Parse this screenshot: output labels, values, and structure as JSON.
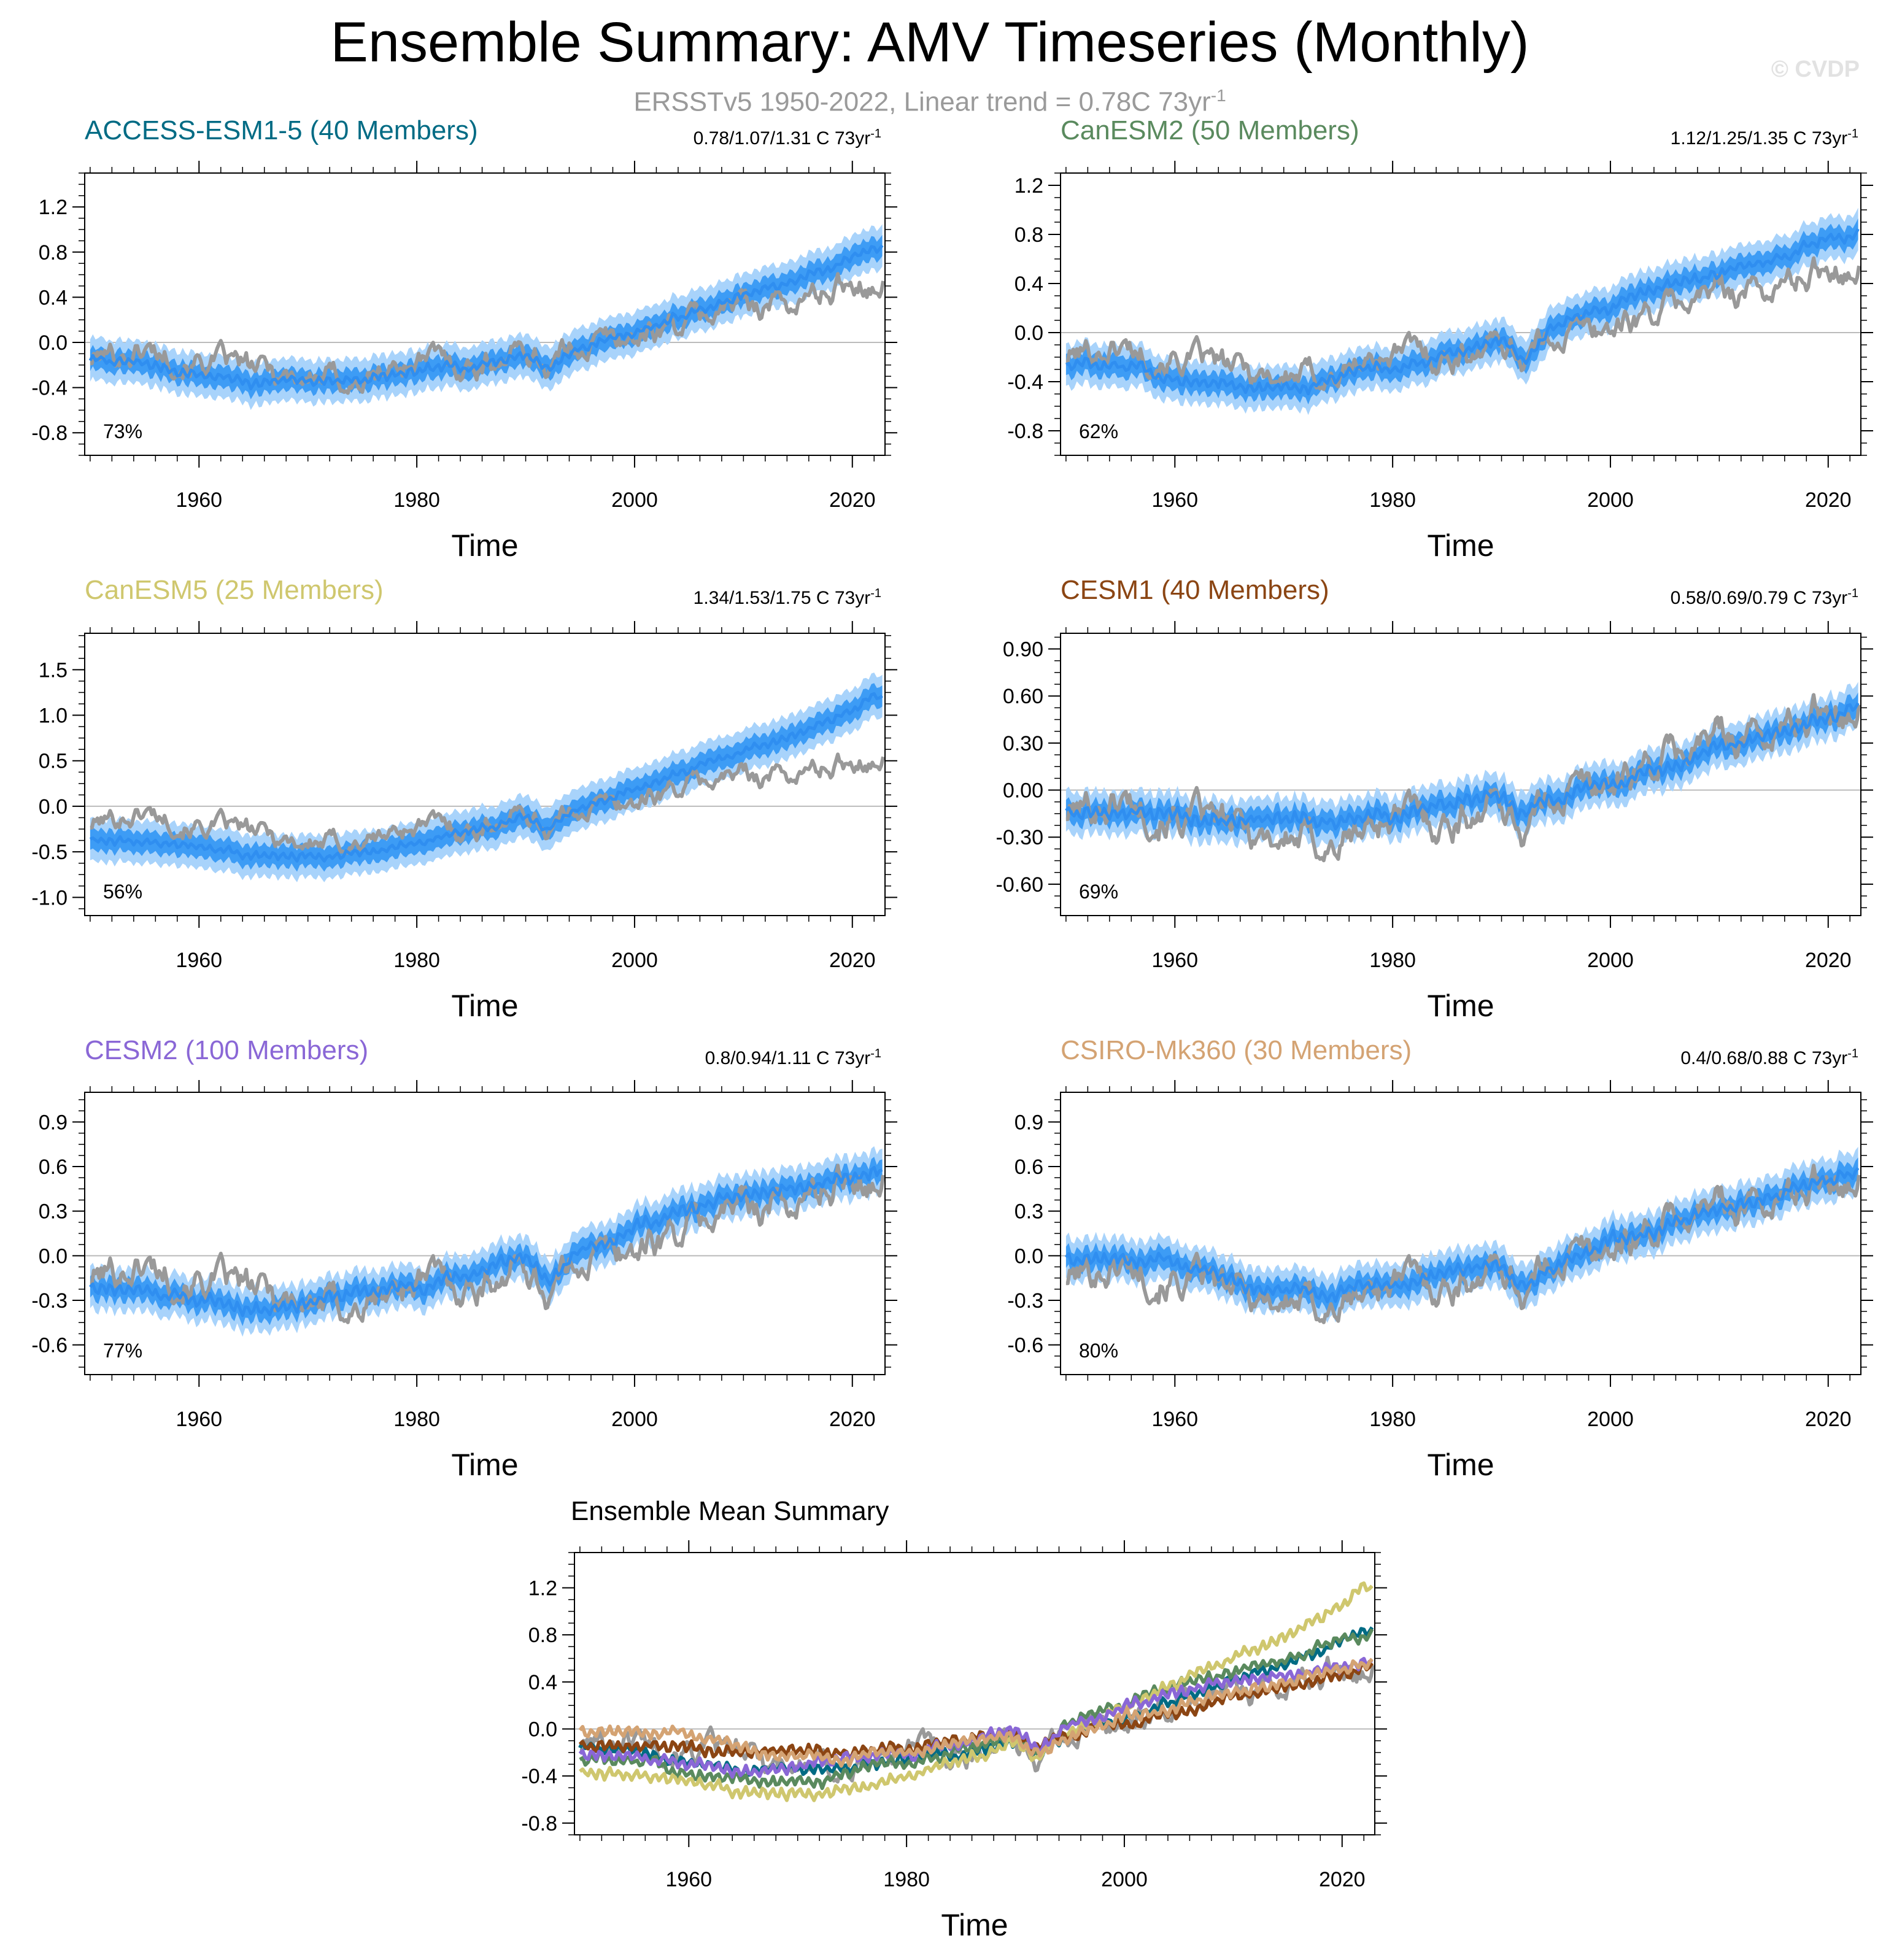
{
  "title": "Ensemble Summary: AMV Timeseries (Monthly)",
  "subtitle_main": "ERSSTv5 1950-2022, Linear trend = 0.78C 73yr",
  "subtitle_sup": "-1",
  "watermark": "© CVDP",
  "colors": {
    "observations": "#999999",
    "ensemble_mean": "#2f8ef0",
    "spread_inner": "#3d9cf5",
    "spread_outer": "#a8d3fb",
    "zero_line": "#bbbbbb"
  },
  "chart_data": [
    {
      "type": "line",
      "id": "access",
      "title": "ACCESS-ESM1-5 (40 Members)",
      "title_color": "#006b84",
      "trend_range": "0.78/1.07/1.31 C 73yr",
      "trend_sup": "-1",
      "percent_label": "73%",
      "xlabel": "Time",
      "xlim": [
        1949.5,
        2023
      ],
      "ylim": [
        -1.0,
        1.5
      ],
      "xticks": [
        1960,
        1980,
        2000,
        2020
      ],
      "yticks": [
        -0.8,
        -0.4,
        0.0,
        0.4,
        0.8,
        1.2
      ],
      "ytick_labels": [
        "-0.8",
        "-0.4",
        "0.0",
        "0.4",
        "0.8",
        "1.2"
      ],
      "series": [
        {
          "name": "ERSSTv5 observations",
          "x": [
            1950,
            1955,
            1960,
            1965,
            1970,
            1975,
            1980,
            1985,
            1990,
            1992,
            1995,
            2000,
            2005,
            2010,
            2015,
            2020,
            2022
          ],
          "values": [
            -0.15,
            -0.05,
            -0.15,
            -0.25,
            -0.3,
            -0.35,
            -0.15,
            -0.2,
            -0.05,
            -0.2,
            0.0,
            0.05,
            0.2,
            0.35,
            0.35,
            0.55,
            0.55
          ]
        },
        {
          "name": "Ensemble mean",
          "x": [
            1950,
            1955,
            1960,
            1965,
            1970,
            1975,
            1980,
            1985,
            1990,
            1992,
            1995,
            2000,
            2005,
            2010,
            2015,
            2020,
            2022
          ],
          "values": [
            -0.15,
            -0.2,
            -0.28,
            -0.35,
            -0.35,
            -0.32,
            -0.28,
            -0.2,
            -0.1,
            -0.22,
            -0.05,
            0.1,
            0.25,
            0.4,
            0.55,
            0.75,
            0.85
          ]
        }
      ]
    },
    {
      "type": "line",
      "id": "canesm2",
      "title": "CanESM2 (50 Members)",
      "title_color": "#5a8a5e",
      "trend_range": "1.12/1.25/1.35 C 73yr",
      "trend_sup": "-1",
      "percent_label": "62%",
      "xlabel": "Time",
      "xlim": [
        1949.5,
        2023
      ],
      "ylim": [
        -1.0,
        1.3
      ],
      "xticks": [
        1960,
        1980,
        2000,
        2020
      ],
      "yticks": [
        -0.8,
        -0.4,
        0.0,
        0.4,
        0.8,
        1.2
      ],
      "ytick_labels": [
        "-0.8",
        "-0.4",
        "0.0",
        "0.4",
        "0.8",
        "1.2"
      ],
      "series": [
        {
          "name": "ERSSTv5 observations",
          "x": [
            1950,
            1955,
            1960,
            1965,
            1970,
            1975,
            1980,
            1985,
            1990,
            1992,
            1995,
            2000,
            2005,
            2010,
            2015,
            2020,
            2022
          ],
          "values": [
            -0.2,
            -0.1,
            -0.2,
            -0.3,
            -0.35,
            -0.35,
            -0.15,
            -0.2,
            -0.05,
            -0.2,
            0.0,
            0.05,
            0.2,
            0.35,
            0.35,
            0.55,
            0.55
          ]
        },
        {
          "name": "Ensemble mean",
          "x": [
            1950,
            1955,
            1960,
            1965,
            1970,
            1975,
            1980,
            1985,
            1990,
            1992,
            1995,
            2000,
            2005,
            2010,
            2015,
            2020,
            2022
          ],
          "values": [
            -0.25,
            -0.28,
            -0.35,
            -0.42,
            -0.45,
            -0.38,
            -0.28,
            -0.18,
            -0.05,
            -0.2,
            0.05,
            0.2,
            0.35,
            0.5,
            0.6,
            0.75,
            0.8
          ]
        }
      ]
    },
    {
      "type": "line",
      "id": "canesm5",
      "title": "CanESM5 (25 Members)",
      "title_color": "#cfc76e",
      "trend_range": "1.34/1.53/1.75 C 73yr",
      "trend_sup": "-1",
      "percent_label": "56%",
      "xlabel": "Time",
      "xlim": [
        1949.5,
        2023
      ],
      "ylim": [
        -1.2,
        1.9
      ],
      "xticks": [
        1960,
        1980,
        2000,
        2020
      ],
      "yticks": [
        -1.0,
        -0.5,
        0.0,
        0.5,
        1.0,
        1.5
      ],
      "ytick_labels": [
        "-1.0",
        "-0.5",
        "0.0",
        "0.5",
        "1.0",
        "1.5"
      ],
      "series": [
        {
          "name": "ERSSTv5 observations",
          "x": [
            1950,
            1955,
            1960,
            1965,
            1970,
            1975,
            1980,
            1985,
            1990,
            1992,
            1995,
            2000,
            2005,
            2010,
            2015,
            2020,
            2022
          ],
          "values": [
            -0.2,
            -0.05,
            -0.2,
            -0.3,
            -0.4,
            -0.4,
            -0.2,
            -0.25,
            -0.05,
            -0.25,
            0.0,
            0.05,
            0.25,
            0.35,
            0.35,
            0.5,
            0.55
          ]
        },
        {
          "name": "Ensemble mean",
          "x": [
            1950,
            1955,
            1960,
            1965,
            1970,
            1975,
            1980,
            1985,
            1990,
            1992,
            1995,
            2000,
            2005,
            2010,
            2015,
            2020,
            2022
          ],
          "values": [
            -0.35,
            -0.38,
            -0.45,
            -0.55,
            -0.55,
            -0.5,
            -0.4,
            -0.25,
            -0.1,
            -0.25,
            0.0,
            0.2,
            0.4,
            0.6,
            0.8,
            1.05,
            1.2
          ]
        }
      ]
    },
    {
      "type": "line",
      "id": "cesm1",
      "title": "CESM1 (40 Members)",
      "title_color": "#8b4513",
      "trend_range": "0.58/0.69/0.79 C 73yr",
      "trend_sup": "-1",
      "percent_label": "69%",
      "xlabel": "Time",
      "xlim": [
        1949.5,
        2023
      ],
      "ylim": [
        -0.8,
        1.0
      ],
      "xticks": [
        1960,
        1980,
        2000,
        2020
      ],
      "yticks": [
        -0.6,
        -0.3,
        0.0,
        0.3,
        0.6,
        0.9
      ],
      "ytick_labels": [
        "-0.60",
        "-0.30",
        "0.00",
        "0.30",
        "0.60",
        "0.90"
      ],
      "series": [
        {
          "name": "ERSSTv5 observations",
          "x": [
            1950,
            1955,
            1960,
            1965,
            1970,
            1975,
            1980,
            1985,
            1990,
            1992,
            1995,
            2000,
            2005,
            2010,
            2015,
            2020,
            2022
          ],
          "values": [
            -0.15,
            -0.05,
            -0.15,
            -0.25,
            -0.3,
            -0.35,
            -0.15,
            -0.2,
            -0.05,
            -0.25,
            0.0,
            0.05,
            0.2,
            0.35,
            0.35,
            0.55,
            0.55
          ]
        },
        {
          "name": "Ensemble mean",
          "x": [
            1950,
            1955,
            1960,
            1965,
            1970,
            1975,
            1980,
            1985,
            1990,
            1992,
            1995,
            2000,
            2005,
            2010,
            2015,
            2020,
            2022
          ],
          "values": [
            -0.12,
            -0.12,
            -0.15,
            -0.18,
            -0.2,
            -0.18,
            -0.15,
            -0.1,
            -0.05,
            -0.15,
            -0.05,
            0.05,
            0.15,
            0.25,
            0.35,
            0.45,
            0.5
          ]
        }
      ]
    },
    {
      "type": "line",
      "id": "cesm2",
      "title": "CESM2 (100 Members)",
      "title_color": "#8a67d6",
      "trend_range": "0.8/0.94/1.11 C 73yr",
      "trend_sup": "-1",
      "percent_label": "77%",
      "xlabel": "Time",
      "xlim": [
        1949.5,
        2023
      ],
      "ylim": [
        -0.8,
        1.1
      ],
      "xticks": [
        1960,
        1980,
        2000,
        2020
      ],
      "yticks": [
        -0.6,
        -0.3,
        0.0,
        0.3,
        0.6,
        0.9
      ],
      "ytick_labels": [
        "-0.6",
        "-0.3",
        "0.0",
        "0.3",
        "0.6",
        "0.9"
      ],
      "series": [
        {
          "name": "ERSSTv5 observations",
          "x": [
            1950,
            1955,
            1960,
            1965,
            1970,
            1975,
            1980,
            1985,
            1990,
            1992,
            1995,
            2000,
            2005,
            2010,
            2015,
            2020,
            2022
          ],
          "values": [
            -0.15,
            -0.05,
            -0.15,
            -0.25,
            -0.3,
            -0.35,
            -0.15,
            -0.2,
            -0.05,
            -0.25,
            0.0,
            0.05,
            0.2,
            0.35,
            0.35,
            0.55,
            0.55
          ]
        },
        {
          "name": "Ensemble mean",
          "x": [
            1950,
            1955,
            1960,
            1965,
            1970,
            1975,
            1980,
            1985,
            1990,
            1992,
            1995,
            2000,
            2005,
            2010,
            2015,
            2020,
            2022
          ],
          "values": [
            -0.2,
            -0.22,
            -0.3,
            -0.35,
            -0.3,
            -0.25,
            -0.2,
            -0.12,
            0.0,
            -0.2,
            0.05,
            0.2,
            0.3,
            0.4,
            0.45,
            0.5,
            0.55
          ]
        }
      ]
    },
    {
      "type": "line",
      "id": "csiro",
      "title": "CSIRO-Mk360 (30 Members)",
      "title_color": "#d4a373",
      "trend_range": "0.4/0.68/0.88 C 73yr",
      "trend_sup": "-1",
      "percent_label": "80%",
      "xlabel": "Time",
      "xlim": [
        1949.5,
        2023
      ],
      "ylim": [
        -0.8,
        1.1
      ],
      "xticks": [
        1960,
        1980,
        2000,
        2020
      ],
      "yticks": [
        -0.6,
        -0.3,
        0.0,
        0.3,
        0.6,
        0.9
      ],
      "ytick_labels": [
        "-0.6",
        "-0.3",
        "0.0",
        "0.3",
        "0.6",
        "0.9"
      ],
      "series": [
        {
          "name": "ERSSTv5 observations",
          "x": [
            1950,
            1955,
            1960,
            1965,
            1970,
            1975,
            1980,
            1985,
            1990,
            1992,
            1995,
            2000,
            2005,
            2010,
            2015,
            2020,
            2022
          ],
          "values": [
            -0.15,
            -0.05,
            -0.15,
            -0.25,
            -0.3,
            -0.35,
            -0.15,
            -0.2,
            -0.05,
            -0.25,
            0.0,
            0.05,
            0.2,
            0.35,
            0.35,
            0.55,
            0.55
          ]
        },
        {
          "name": "Ensemble mean",
          "x": [
            1950,
            1955,
            1960,
            1965,
            1970,
            1975,
            1980,
            1985,
            1990,
            1992,
            1995,
            2000,
            2005,
            2010,
            2015,
            2020,
            2022
          ],
          "values": [
            0.0,
            -0.02,
            -0.05,
            -0.15,
            -0.25,
            -0.25,
            -0.2,
            -0.12,
            -0.05,
            -0.2,
            -0.05,
            0.1,
            0.2,
            0.3,
            0.4,
            0.5,
            0.55
          ]
        }
      ]
    },
    {
      "type": "line",
      "id": "mean-summary",
      "title": "Ensemble Mean Summary",
      "title_color": "#000000",
      "xlabel": "Time",
      "xlim": [
        1949.5,
        2023
      ],
      "ylim": [
        -0.9,
        1.5
      ],
      "xticks": [
        1960,
        1980,
        2000,
        2020
      ],
      "yticks": [
        -0.8,
        -0.4,
        0.0,
        0.4,
        0.8,
        1.2
      ],
      "ytick_labels": [
        "-0.8",
        "-0.4",
        "0.0",
        "0.4",
        "0.8",
        "1.2"
      ],
      "series": [
        {
          "name": "ERSSTv5 observations",
          "color": "#999999",
          "x": [
            1950,
            1955,
            1960,
            1965,
            1970,
            1975,
            1980,
            1985,
            1990,
            1992,
            1995,
            2000,
            2005,
            2010,
            2015,
            2020,
            2022
          ],
          "values": [
            -0.15,
            -0.05,
            -0.15,
            -0.25,
            -0.3,
            -0.35,
            -0.15,
            -0.2,
            -0.05,
            -0.25,
            0.0,
            0.05,
            0.2,
            0.35,
            0.35,
            0.55,
            0.55
          ]
        },
        {
          "name": "ACCESS-ESM1-5",
          "color": "#006b84",
          "x": [
            1950,
            1955,
            1960,
            1965,
            1970,
            1975,
            1980,
            1985,
            1990,
            1992,
            1995,
            2000,
            2005,
            2010,
            2015,
            2020,
            2022
          ],
          "values": [
            -0.15,
            -0.2,
            -0.28,
            -0.35,
            -0.35,
            -0.32,
            -0.28,
            -0.2,
            -0.1,
            -0.22,
            -0.05,
            0.1,
            0.25,
            0.4,
            0.55,
            0.75,
            0.85
          ]
        },
        {
          "name": "CanESM2",
          "color": "#5a8a5e",
          "x": [
            1950,
            1955,
            1960,
            1965,
            1970,
            1975,
            1980,
            1985,
            1990,
            1992,
            1995,
            2000,
            2005,
            2010,
            2015,
            2020,
            2022
          ],
          "values": [
            -0.25,
            -0.28,
            -0.35,
            -0.42,
            -0.45,
            -0.38,
            -0.28,
            -0.18,
            -0.05,
            -0.2,
            0.05,
            0.2,
            0.35,
            0.5,
            0.6,
            0.75,
            0.8
          ]
        },
        {
          "name": "CanESM5",
          "color": "#cfc76e",
          "x": [
            1950,
            1955,
            1960,
            1965,
            1970,
            1975,
            1980,
            1985,
            1990,
            1992,
            1995,
            2000,
            2005,
            2010,
            2015,
            2020,
            2022
          ],
          "values": [
            -0.35,
            -0.38,
            -0.45,
            -0.55,
            -0.55,
            -0.5,
            -0.4,
            -0.25,
            -0.1,
            -0.25,
            0.0,
            0.2,
            0.4,
            0.6,
            0.8,
            1.05,
            1.2
          ]
        },
        {
          "name": "CESM1",
          "color": "#8b4513",
          "x": [
            1950,
            1955,
            1960,
            1965,
            1970,
            1975,
            1980,
            1985,
            1990,
            1992,
            1995,
            2000,
            2005,
            2010,
            2015,
            2020,
            2022
          ],
          "values": [
            -0.12,
            -0.12,
            -0.15,
            -0.18,
            -0.2,
            -0.18,
            -0.15,
            -0.1,
            -0.05,
            -0.15,
            -0.05,
            0.05,
            0.15,
            0.25,
            0.35,
            0.45,
            0.5
          ]
        },
        {
          "name": "CESM2",
          "color": "#8a67d6",
          "x": [
            1950,
            1955,
            1960,
            1965,
            1970,
            1975,
            1980,
            1985,
            1990,
            1992,
            1995,
            2000,
            2005,
            2010,
            2015,
            2020,
            2022
          ],
          "values": [
            -0.2,
            -0.22,
            -0.3,
            -0.35,
            -0.3,
            -0.25,
            -0.2,
            -0.12,
            0.0,
            -0.2,
            0.05,
            0.2,
            0.3,
            0.4,
            0.45,
            0.5,
            0.55
          ]
        },
        {
          "name": "CSIRO-Mk360",
          "color": "#d4a373",
          "x": [
            1950,
            1955,
            1960,
            1965,
            1970,
            1975,
            1980,
            1985,
            1990,
            1992,
            1995,
            2000,
            2005,
            2010,
            2015,
            2020,
            2022
          ],
          "values": [
            0.0,
            -0.02,
            -0.05,
            -0.15,
            -0.25,
            -0.25,
            -0.2,
            -0.12,
            -0.05,
            -0.2,
            -0.05,
            0.1,
            0.2,
            0.3,
            0.4,
            0.5,
            0.55
          ]
        }
      ]
    }
  ]
}
